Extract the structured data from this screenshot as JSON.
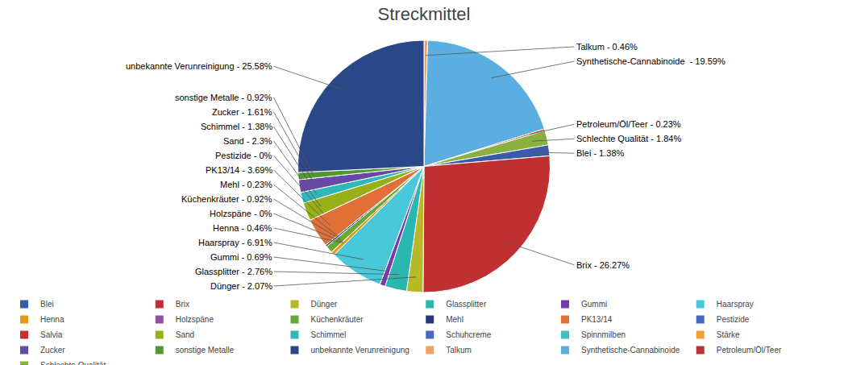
{
  "chart_data": {
    "type": "pie",
    "title": "Streckmittel",
    "categories": [
      "Talkum",
      "Synthetische-Cannabinoide",
      "Petroleum/Öl/Teer",
      "Schlechte Qualität",
      "Blei",
      "Brix",
      "Dünger",
      "Glassplitter",
      "Gummi",
      "Haarspray",
      "Henna",
      "Holzspäne",
      "Küchenkräuter",
      "Mehl",
      "PK13/14",
      "Pestizide",
      "Sand",
      "Schimmel",
      "Zucker",
      "sonstige Metalle",
      "unbekannte Verunreinigung"
    ],
    "values": [
      0.46,
      19.59,
      0.23,
      1.84,
      1.38,
      26.27,
      2.07,
      2.76,
      0.69,
      6.91,
      0.46,
      0.001,
      0.92,
      0.23,
      3.69,
      0.001,
      2.3,
      1.38,
      1.61,
      0.92,
      25.58
    ],
    "colors": [
      "#f0a060",
      "#5aaee0",
      "#c03030",
      "#8ab040",
      "#3a5aaa",
      "#c03030",
      "#b8b828",
      "#28b8b0",
      "#7838b0",
      "#48c8d8",
      "#e89818",
      "#9050a8",
      "#68a838",
      "#283878",
      "#e07038",
      "#4868c0",
      "#98b018",
      "#30b8b8",
      "#6848a8",
      "#509830",
      "#2a4888"
    ],
    "value_labels": [
      "Talkum - 0.46%",
      "Synthetische-Cannabinoide  - 19.59%",
      "Petroleum/Öl/Teer - 0.23%",
      "Schlechte Qualität - 1.84%",
      "Blei - 1.38%",
      "Brix - 26.27%",
      "Dünger - 2.07%",
      "Glassplitter - 2.76%",
      "Gummi - 0.69%",
      "Haarspray - 6.91%",
      "Henna - 0.46%",
      "Holzspäne - 0%",
      "Küchenkräuter - 0.92%",
      "Mehl - 0.23%",
      "PK13/14 - 3.69%",
      "Pestizide - 0%",
      "Sand - 2.3%",
      "Schimmel - 1.38%",
      "Zucker - 1.61%",
      "sonstige Metalle - 0.92%",
      "unbekannte Verunreinigung - 25.58%"
    ],
    "legend_entries": [
      {
        "label": "Blei",
        "color": "#3a5aaa"
      },
      {
        "label": "Brix",
        "color": "#c03030"
      },
      {
        "label": "Dünger",
        "color": "#b8b828"
      },
      {
        "label": "Glassplitter",
        "color": "#28b8b0"
      },
      {
        "label": "Gummi",
        "color": "#7838b0"
      },
      {
        "label": "Haarspray",
        "color": "#48c8d8"
      },
      {
        "label": "Henna",
        "color": "#e89818"
      },
      {
        "label": "Holzspäne",
        "color": "#9050a8"
      },
      {
        "label": "Küchenkräuter",
        "color": "#68a838"
      },
      {
        "label": "Mehl",
        "color": "#283878"
      },
      {
        "label": "PK13/14",
        "color": "#e07038"
      },
      {
        "label": "Pestizide",
        "color": "#4868c0"
      },
      {
        "label": "Salvia",
        "color": "#c83030"
      },
      {
        "label": "Sand",
        "color": "#98b018"
      },
      {
        "label": "Schimmel",
        "color": "#30b8b8"
      },
      {
        "label": "Schuhcreme",
        "color": "#4868c0"
      },
      {
        "label": "Spinnmilben",
        "color": "#40c0c0"
      },
      {
        "label": "Stärke",
        "color": "#f0a030"
      },
      {
        "label": "Zucker",
        "color": "#6848a8"
      },
      {
        "label": "sonstige Metalle",
        "color": "#509830"
      },
      {
        "label": "unbekannte Verunreinigung",
        "color": "#2a4888"
      },
      {
        "label": "Talkum",
        "color": "#f0a060"
      },
      {
        "label": "Synthetische-Cannabinoide",
        "color": "#5aaee0"
      },
      {
        "label": "Petroleum/Öl/Teer",
        "color": "#c03030"
      },
      {
        "label": "Schlechte Qualität",
        "color": "#8ab040"
      }
    ],
    "legend": "lower left"
  }
}
